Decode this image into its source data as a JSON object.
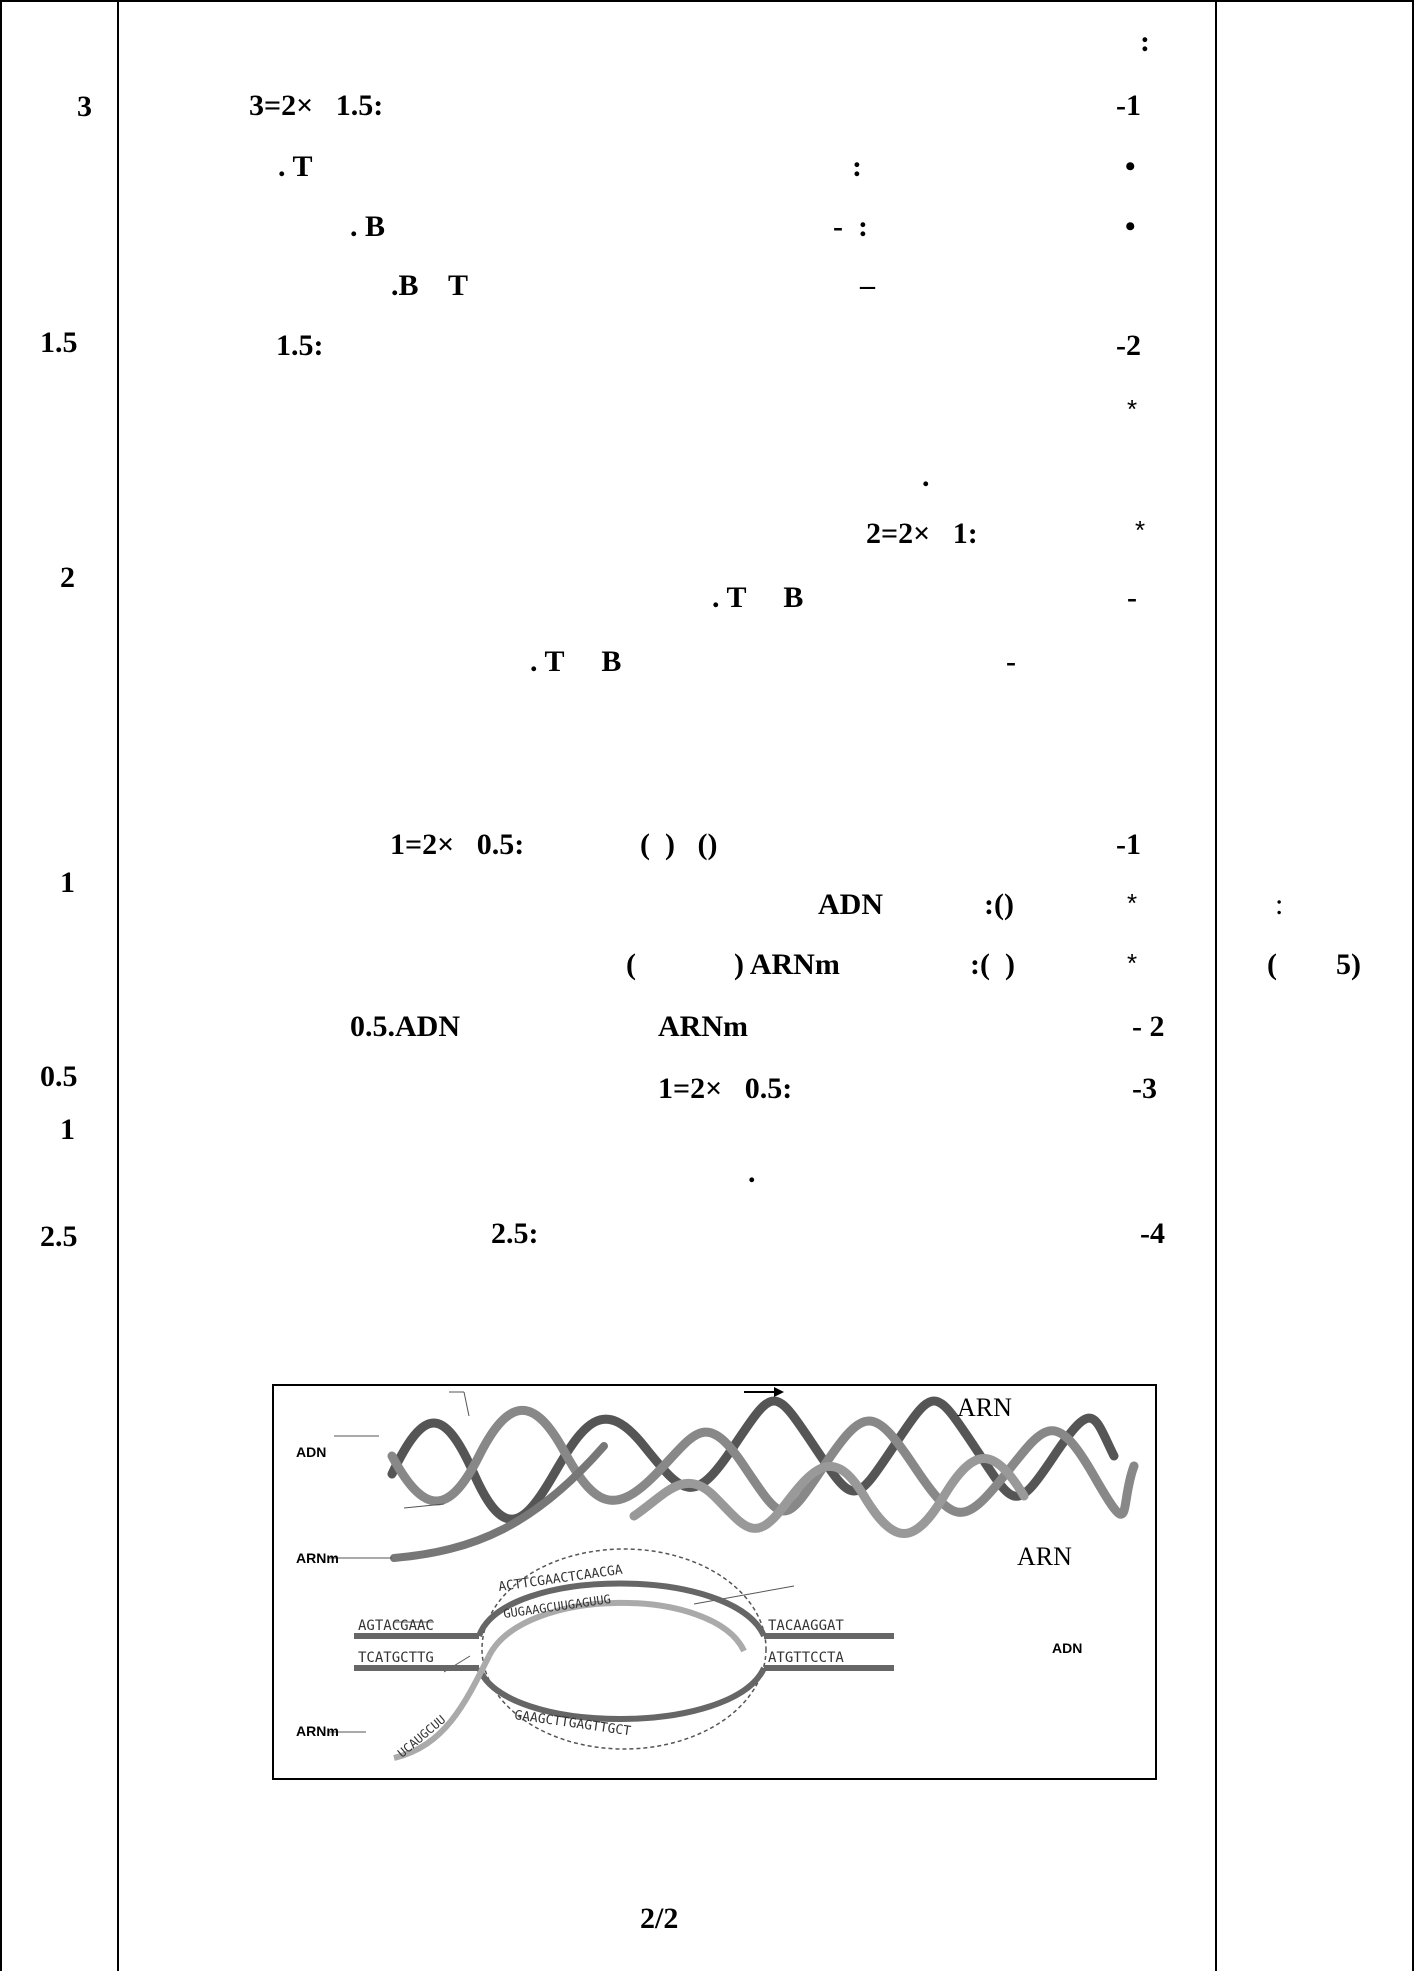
{
  "marks": {
    "q1": "3",
    "q2": "1.5",
    "q3": "2",
    "q4": "1",
    "q5": "0.5",
    "q6": "1",
    "q7": "2.5"
  },
  "lines": {
    "colon_top": ":",
    "l1_points": "3=2×   1.5:",
    "l1_num": "-1",
    "l2_text": ". T",
    "l2_colon": ":",
    "l2_bullet": "•",
    "l3_text": ". B",
    "l3_dash_colon": "-  :",
    "l3_bullet": "•",
    "l4_text": ".B    T",
    "l4_dash": "–",
    "l5_points": "1.5:",
    "l5_num": "-2",
    "l6_star": "*",
    "l7_dot": ".",
    "l8_points": "2=2×   1:",
    "l8_star": "*",
    "l9_text": ". T     B",
    "l9_dash": "-",
    "l10_text": ". T     B",
    "l10_dash": "-",
    "e1_points": "1=2×   0.5:",
    "e1_parens": "(  )   ()",
    "e1_num": "-1",
    "e2_term": "ADN",
    "e2_colon": ":()",
    "e2_star": "*",
    "e3_paren": "(",
    "e3_term": ") ARNm",
    "e3_colon": ":(  )",
    "e3_star": "*",
    "e4_left": "0.5.ADN",
    "e4_mid": "ARNm",
    "e4_num": "- 2",
    "e5_points": "1=2×   0.5:",
    "e5_num": "-3",
    "e6_dot": ".",
    "e7_points": "2.5:",
    "e7_num": "-4"
  },
  "right_column": {
    "colon": ":",
    "paren": "(",
    "value": "5)"
  },
  "figure": {
    "label_adn_left": "ADN",
    "label_arn_top": "ARN",
    "label_arnm_mid": "ARNm",
    "label_arn_mid": "ARN",
    "label_adn_right": "ADN",
    "label_arnm_bottom": "ARNm",
    "seq_top_left": "AGTACGAAC",
    "seq_bottom_left": "TCATGCTTG",
    "seq_top_right": "TACAAGGAT",
    "seq_bottom_right": "ATGTTCCTA",
    "seq_arc_top": "ACTTCGAACTCAACGA",
    "seq_arc_mid": "GUGAAGCUUGAGUUG",
    "seq_arc_bottom": "GAAGCTTGAGTTGCT",
    "seq_arnm_tail": "UCAUGCUU"
  },
  "footer": {
    "page": "2/2"
  }
}
